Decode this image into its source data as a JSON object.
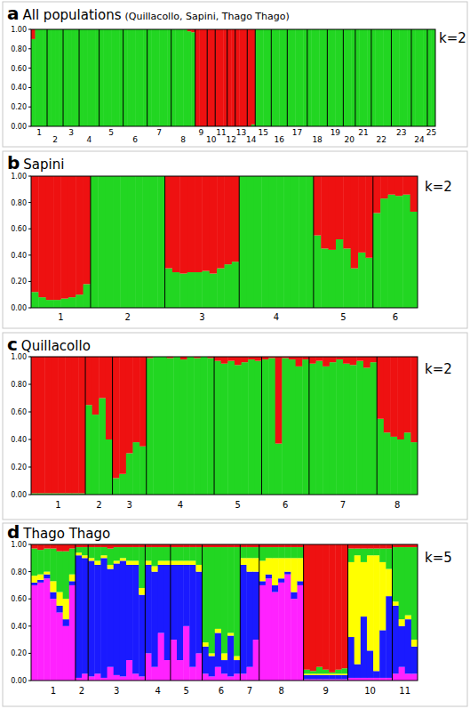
{
  "chart_data": [
    {
      "type": "bar",
      "stacked": true,
      "panel": "a",
      "title": "All populations",
      "subtitle": "(Quillacollo, Sapini, Thago Thago)",
      "annotation": "k=2",
      "categories": [
        "1",
        "1",
        "1",
        "1",
        "2",
        "2",
        "2",
        "2",
        "3",
        "3",
        "3",
        "3",
        "4",
        "4",
        "4",
        "4",
        "4",
        "5",
        "5",
        "5",
        "5",
        "5",
        "5",
        "6",
        "6",
        "6",
        "6",
        "6",
        "6",
        "7",
        "7",
        "7",
        "7",
        "7",
        "7",
        "8",
        "8",
        "8",
        "8",
        "8",
        "8",
        "9",
        "9",
        "9",
        "10",
        "10",
        "11",
        "11",
        "11",
        "12",
        "12",
        "13",
        "13",
        "13",
        "14",
        "14",
        "15",
        "15",
        "15",
        "15",
        "16",
        "16",
        "16",
        "16",
        "17",
        "17",
        "17",
        "17",
        "17",
        "18",
        "18",
        "18",
        "18",
        "18",
        "19",
        "19",
        "19",
        "19",
        "20",
        "20",
        "20",
        "21",
        "21",
        "21",
        "21",
        "22",
        "22",
        "22",
        "22",
        "22",
        "23",
        "23",
        "23",
        "23",
        "23",
        "24",
        "24",
        "24",
        "24",
        "25",
        "25"
      ],
      "series": [
        {
          "color": "#22d622",
          "values": [
            0.9,
            1,
            1,
            1,
            1,
            1,
            1,
            1,
            1,
            1,
            1,
            1,
            1,
            1,
            1,
            1,
            1,
            1,
            1,
            1,
            1,
            1,
            1,
            1,
            1,
            1,
            1,
            1,
            1,
            1,
            1,
            1,
            1,
            1,
            1,
            1,
            1,
            1,
            1,
            0.98,
            0.97,
            0,
            0,
            0,
            0,
            0,
            0,
            0,
            0,
            0,
            0,
            0,
            0,
            0,
            0,
            0.02,
            1,
            1,
            1,
            1,
            1,
            1,
            1,
            1,
            1,
            1,
            1,
            1,
            1,
            1,
            1,
            1,
            1,
            1,
            1,
            1,
            1,
            1,
            1,
            1,
            1,
            1,
            1,
            1,
            1,
            1,
            1,
            1,
            1,
            1,
            1,
            1,
            1,
            1,
            1,
            1,
            1,
            1,
            1,
            1,
            1
          ]
        },
        {
          "color": "#ee1111",
          "values": [
            0.1,
            0,
            0,
            0,
            0,
            0,
            0,
            0,
            0,
            0,
            0,
            0,
            0,
            0,
            0,
            0,
            0,
            0,
            0,
            0,
            0,
            0,
            0,
            0,
            0,
            0,
            0,
            0,
            0,
            0,
            0,
            0,
            0,
            0,
            0,
            0,
            0,
            0,
            0,
            0.02,
            0.03,
            1,
            1,
            1,
            1,
            1,
            1,
            1,
            1,
            1,
            1,
            1,
            1,
            1,
            1,
            0.98,
            0,
            0,
            0,
            0,
            0,
            0,
            0,
            0,
            0,
            0,
            0,
            0,
            0,
            0,
            0,
            0,
            0,
            0,
            0,
            0,
            0,
            0,
            0,
            0,
            0,
            0,
            0,
            0,
            0,
            0,
            0,
            0,
            0,
            0,
            0,
            0,
            0,
            0,
            0,
            0,
            0,
            0,
            0,
            0,
            0
          ]
        }
      ],
      "ylim": [
        0,
        1
      ],
      "yticks": [
        {
          "value": 0,
          "label": "0.00"
        },
        {
          "value": 0.2,
          "label": "0.20"
        },
        {
          "value": 0.4,
          "label": "0.40"
        },
        {
          "value": 0.6,
          "label": "0.60"
        },
        {
          "value": 0.8,
          "label": "0.80"
        },
        {
          "value": 1,
          "label": "1.00"
        }
      ]
    },
    {
      "type": "bar",
      "stacked": true,
      "panel": "b",
      "title": "Sapini",
      "annotation": "k=2",
      "categories": [
        "1",
        "1",
        "1",
        "1",
        "1",
        "1",
        "1",
        "1",
        "2",
        "2",
        "2",
        "2",
        "2",
        "2",
        "2",
        "2",
        "2",
        "2",
        "3",
        "3",
        "3",
        "3",
        "3",
        "3",
        "3",
        "3",
        "3",
        "3",
        "4",
        "4",
        "4",
        "4",
        "4",
        "4",
        "4",
        "4",
        "4",
        "4",
        "5",
        "5",
        "5",
        "5",
        "5",
        "5",
        "5",
        "5",
        "6",
        "6",
        "6",
        "6",
        "6",
        "6"
      ],
      "series": [
        {
          "color": "#22d622",
          "values": [
            0.12,
            0.08,
            0.06,
            0.06,
            0.07,
            0.08,
            0.1,
            0.18,
            1,
            1,
            1,
            1,
            1,
            1,
            1,
            1,
            1,
            1,
            0.3,
            0.27,
            0.26,
            0.27,
            0.27,
            0.28,
            0.26,
            0.3,
            0.33,
            0.35,
            1,
            1,
            1,
            1,
            1,
            1,
            1,
            1,
            1,
            1,
            0.55,
            0.45,
            0.44,
            0.52,
            0.45,
            0.3,
            0.42,
            0.38,
            0.72,
            0.83,
            0.86,
            0.85,
            0.86,
            0.73
          ]
        },
        {
          "color": "#ee1111",
          "values": [
            0.88,
            0.92,
            0.94,
            0.94,
            0.93,
            0.92,
            0.9,
            0.82,
            0,
            0,
            0,
            0,
            0,
            0,
            0,
            0,
            0,
            0,
            0.7,
            0.73,
            0.74,
            0.73,
            0.73,
            0.72,
            0.74,
            0.7,
            0.67,
            0.65,
            0,
            0,
            0,
            0,
            0,
            0,
            0,
            0,
            0,
            0,
            0.45,
            0.55,
            0.56,
            0.48,
            0.55,
            0.7,
            0.58,
            0.62,
            0.28,
            0.17,
            0.14,
            0.15,
            0.14,
            0.27
          ]
        }
      ],
      "ylim": [
        0,
        1
      ],
      "yticks": [
        {
          "value": 0,
          "label": "0.00"
        },
        {
          "value": 0.2,
          "label": "0.20"
        },
        {
          "value": 0.4,
          "label": "0.40"
        },
        {
          "value": 0.6,
          "label": "0.60"
        },
        {
          "value": 0.8,
          "label": "0.80"
        },
        {
          "value": 1,
          "label": "1.00"
        }
      ]
    },
    {
      "type": "bar",
      "stacked": true,
      "panel": "c",
      "title": "Quillacollo",
      "annotation": "k=2",
      "categories": [
        "1",
        "1",
        "1",
        "1",
        "1",
        "1",
        "1",
        "1",
        "2",
        "2",
        "2",
        "2",
        "3",
        "3",
        "3",
        "3",
        "3",
        "4",
        "4",
        "4",
        "4",
        "4",
        "4",
        "4",
        "4",
        "4",
        "4",
        "5",
        "5",
        "5",
        "5",
        "5",
        "5",
        "5",
        "6",
        "6",
        "6",
        "6",
        "6",
        "6",
        "6",
        "7",
        "7",
        "7",
        "7",
        "7",
        "7",
        "7",
        "7",
        "7",
        "7",
        "8",
        "8",
        "8",
        "8",
        "8",
        "8"
      ],
      "series": [
        {
          "color": "#22d622",
          "values": [
            0.01,
            0.01,
            0.01,
            0.01,
            0.01,
            0.01,
            0.01,
            0.01,
            0.65,
            0.58,
            0.7,
            0.4,
            0.12,
            0.15,
            0.3,
            0.38,
            0.35,
            0.99,
            1,
            1,
            0.99,
            1,
            0.98,
            1,
            0.99,
            1,
            0.99,
            0.97,
            0.95,
            0.97,
            0.94,
            0.96,
            0.98,
            0.97,
            0.98,
            0.99,
            0.37,
            0.99,
            0.98,
            0.93,
            0.98,
            0.95,
            0.97,
            0.93,
            0.96,
            0.98,
            0.95,
            0.94,
            0.97,
            0.92,
            0.96,
            0.55,
            0.45,
            0.42,
            0.4,
            0.45,
            0.38
          ]
        },
        {
          "color": "#ee1111",
          "values": [
            0.99,
            0.99,
            0.99,
            0.99,
            0.99,
            0.99,
            0.99,
            0.99,
            0.35,
            0.42,
            0.3,
            0.6,
            0.88,
            0.85,
            0.7,
            0.62,
            0.65,
            0.01,
            0,
            0,
            0.01,
            0,
            0.02,
            0,
            0.01,
            0,
            0.01,
            0.03,
            0.05,
            0.03,
            0.06,
            0.04,
            0.02,
            0.03,
            0.02,
            0.01,
            0.63,
            0.01,
            0.02,
            0.07,
            0.02,
            0.05,
            0.03,
            0.07,
            0.04,
            0.02,
            0.05,
            0.06,
            0.03,
            0.08,
            0.04,
            0.45,
            0.55,
            0.58,
            0.6,
            0.55,
            0.62
          ]
        }
      ],
      "ylim": [
        0,
        1
      ],
      "yticks": [
        {
          "value": 0,
          "label": "0.00"
        },
        {
          "value": 0.2,
          "label": "0.20"
        },
        {
          "value": 0.4,
          "label": "0.40"
        },
        {
          "value": 0.6,
          "label": "0.60"
        },
        {
          "value": 0.8,
          "label": "0.80"
        },
        {
          "value": 1,
          "label": "1.00"
        }
      ]
    },
    {
      "type": "bar",
      "stacked": true,
      "panel": "d",
      "title": "Thago Thago",
      "annotation": "k=5",
      "categories": [
        "1",
        "1",
        "1",
        "1",
        "1",
        "1",
        "1",
        "2",
        "2",
        "3",
        "3",
        "3",
        "3",
        "3",
        "3",
        "3",
        "3",
        "3",
        "4",
        "4",
        "4",
        "4",
        "5",
        "5",
        "5",
        "5",
        "5",
        "6",
        "6",
        "6",
        "6",
        "6",
        "6",
        "7",
        "7",
        "7",
        "8",
        "8",
        "8",
        "8",
        "8",
        "8",
        "8",
        "9",
        "9",
        "9",
        "9",
        "9",
        "9",
        "9",
        "10",
        "10",
        "10",
        "10",
        "10",
        "10",
        "10",
        "11",
        "11",
        "11",
        "11"
      ],
      "series": [
        {
          "color": "#ff22ff",
          "values": [
            0.7,
            0.72,
            0.75,
            0.6,
            0.5,
            0.4,
            0.7,
            0.02,
            0.05,
            0.03,
            0.05,
            0.02,
            0.1,
            0.04,
            0.03,
            0.15,
            0.05,
            0.03,
            0.2,
            0.1,
            0.35,
            0.15,
            0.3,
            0.15,
            0.4,
            0.1,
            0.2,
            0.05,
            0.03,
            0.1,
            0.05,
            0.03,
            0.05,
            0.05,
            0.1,
            0.3,
            0.7,
            0.75,
            0.65,
            0.72,
            0.78,
            0.6,
            0.7,
            0.01,
            0.01,
            0.01,
            0.01,
            0.01,
            0.01,
            0.01,
            0.02,
            0.02,
            0.02,
            0.02,
            0.02,
            0.02,
            0.02,
            0.05,
            0.1,
            0.05,
            0.05
          ]
        },
        {
          "color": "#1a1aff",
          "values": [
            0.02,
            0.02,
            0.03,
            0.05,
            0.05,
            0.05,
            0.03,
            0.9,
            0.85,
            0.85,
            0.8,
            0.88,
            0.72,
            0.82,
            0.85,
            0.7,
            0.8,
            0.6,
            0.65,
            0.7,
            0.5,
            0.7,
            0.55,
            0.7,
            0.45,
            0.75,
            0.6,
            0.2,
            0.15,
            0.25,
            0.1,
            0.3,
            0.1,
            0.8,
            0.7,
            0.5,
            0.03,
            0.03,
            0.05,
            0.03,
            0.02,
            0.05,
            0.03,
            0.03,
            0.03,
            0.03,
            0.03,
            0.03,
            0.03,
            0.03,
            0.3,
            0.1,
            0.45,
            0.2,
            0.05,
            0.35,
            0.6,
            0.5,
            0.3,
            0.4,
            0.2
          ]
        },
        {
          "color": "#ffff00",
          "values": [
            0.05,
            0.04,
            0.02,
            0.08,
            0.1,
            0.15,
            0.05,
            0.02,
            0.02,
            0.02,
            0.03,
            0.02,
            0.03,
            0.02,
            0.02,
            0.03,
            0.03,
            0.05,
            0.03,
            0.04,
            0.03,
            0.03,
            0.03,
            0.03,
            0.03,
            0.03,
            0.05,
            0.03,
            0.02,
            0.03,
            0.05,
            0.02,
            0.03,
            0.05,
            0.1,
            0.1,
            0.15,
            0.12,
            0.2,
            0.15,
            0.1,
            0.25,
            0.17,
            0.01,
            0.01,
            0.01,
            0.01,
            0.01,
            0.01,
            0.01,
            0.55,
            0.8,
            0.4,
            0.7,
            0.85,
            0.5,
            0.2,
            0.03,
            0.05,
            0.03,
            0.05
          ]
        },
        {
          "color": "#22d622",
          "values": [
            0.2,
            0.18,
            0.17,
            0.24,
            0.3,
            0.35,
            0.19,
            0.04,
            0.06,
            0.08,
            0.1,
            0.06,
            0.12,
            0.1,
            0.08,
            0.1,
            0.1,
            0.3,
            0.1,
            0.14,
            0.1,
            0.1,
            0.1,
            0.1,
            0.1,
            0.1,
            0.13,
            0.7,
            0.78,
            0.6,
            0.78,
            0.63,
            0.8,
            0.08,
            0.08,
            0.08,
            0.1,
            0.08,
            0.08,
            0.08,
            0.08,
            0.08,
            0.08,
            0.03,
            0.02,
            0.05,
            0.03,
            0.01,
            0.03,
            0.04,
            0.1,
            0.05,
            0.1,
            0.05,
            0.05,
            0.1,
            0.15,
            0.4,
            0.53,
            0.5,
            0.68
          ]
        },
        {
          "color": "#ee1111",
          "values": [
            0.03,
            0.04,
            0.03,
            0.03,
            0.05,
            0.05,
            0.03,
            0.02,
            0.02,
            0.02,
            0.02,
            0.02,
            0.03,
            0.02,
            0.02,
            0.02,
            0.02,
            0.02,
            0.02,
            0.02,
            0.02,
            0.02,
            0.02,
            0.02,
            0.02,
            0.02,
            0.02,
            0.02,
            0.02,
            0.02,
            0.02,
            0.02,
            0.02,
            0.02,
            0.02,
            0.02,
            0.02,
            0.02,
            0.02,
            0.02,
            0.02,
            0.02,
            0.02,
            0.92,
            0.93,
            0.9,
            0.92,
            0.94,
            0.92,
            0.91,
            0.03,
            0.03,
            0.03,
            0.03,
            0.03,
            0.03,
            0.03,
            0.02,
            0.02,
            0.02,
            0.02
          ]
        }
      ],
      "ylim": [
        0,
        1
      ],
      "yticks": [
        {
          "value": 0,
          "label": "0.00"
        },
        {
          "value": 0.2,
          "label": "0.20"
        },
        {
          "value": 0.4,
          "label": "0.40"
        },
        {
          "value": 0.6,
          "label": "0.60"
        },
        {
          "value": 0.8,
          "label": "0.80"
        },
        {
          "value": 1,
          "label": "1.00"
        }
      ]
    }
  ]
}
